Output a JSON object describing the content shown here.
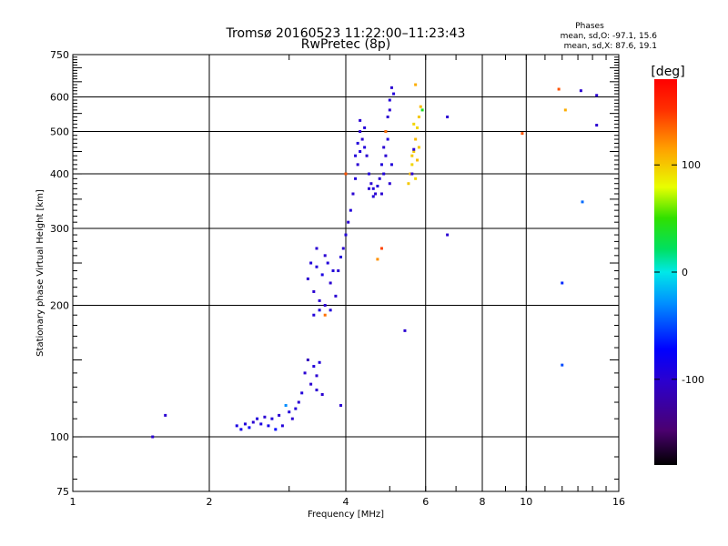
{
  "chart_data": {
    "type": "scatter",
    "title_line1": "Tromsø 20160523 11:22:00–11:23:43",
    "title_line2": "RwPretec (8p)",
    "stats": {
      "header": "Phases",
      "line_o": "mean, sd,O: -97.1, 15.6",
      "line_x": "mean, sd,X:  87.6, 19.1"
    },
    "xlabel": "Frequency [MHz]",
    "ylabel": "Stationary phase Virtual Height [km]",
    "x_scale": "log",
    "y_scale": "log",
    "xlim": [
      1,
      16
    ],
    "ylim": [
      75,
      750
    ],
    "x_ticks": [
      {
        "v": 1,
        "label": "1"
      },
      {
        "v": 2,
        "label": "2"
      },
      {
        "v": 4,
        "label": "4"
      },
      {
        "v": 6,
        "label": "6"
      },
      {
        "v": 8,
        "label": "8"
      },
      {
        "v": 10,
        "label": "10"
      },
      {
        "v": 16,
        "label": "16"
      }
    ],
    "x_grid": [
      2,
      4,
      6,
      8,
      10
    ],
    "y_ticks": [
      {
        "v": 75,
        "label": "75"
      },
      {
        "v": 100,
        "label": "100"
      },
      {
        "v": 200,
        "label": "200"
      },
      {
        "v": 300,
        "label": "300"
      },
      {
        "v": 400,
        "label": "400"
      },
      {
        "v": 500,
        "label": "500"
      },
      {
        "v": 600,
        "label": "600"
      },
      {
        "v": 750,
        "label": "750"
      }
    ],
    "y_grid": [
      100,
      200,
      300,
      400,
      500,
      600
    ],
    "colorbar": {
      "label": "[deg]",
      "min": -180,
      "max": 180,
      "ticks": [
        {
          "v": 100,
          "label": "100"
        },
        {
          "v": 0,
          "label": "0"
        },
        {
          "v": -100,
          "label": "-100"
        }
      ]
    },
    "points": [
      [
        1.5,
        100,
        -100
      ],
      [
        1.6,
        112,
        -100
      ],
      [
        2.3,
        106,
        -90
      ],
      [
        2.35,
        104,
        -85
      ],
      [
        2.4,
        107,
        -95
      ],
      [
        2.45,
        105,
        -80
      ],
      [
        2.5,
        108,
        -100
      ],
      [
        2.55,
        110,
        -95
      ],
      [
        2.6,
        107,
        -90
      ],
      [
        2.65,
        111,
        -100
      ],
      [
        2.7,
        106,
        -85
      ],
      [
        2.75,
        110,
        -95
      ],
      [
        2.8,
        104,
        -70
      ],
      [
        2.85,
        112,
        -100
      ],
      [
        2.9,
        106,
        -95
      ],
      [
        2.95,
        118,
        -30
      ],
      [
        3.0,
        114,
        -95
      ],
      [
        3.05,
        110,
        -100
      ],
      [
        3.1,
        116,
        -95
      ],
      [
        3.15,
        120,
        -100
      ],
      [
        3.2,
        126,
        -95
      ],
      [
        3.25,
        140,
        -100
      ],
      [
        3.3,
        150,
        -110
      ],
      [
        3.35,
        132,
        -100
      ],
      [
        3.4,
        145,
        -95
      ],
      [
        3.45,
        128,
        -100
      ],
      [
        3.5,
        148,
        -95
      ],
      [
        3.45,
        138,
        -100
      ],
      [
        3.55,
        125,
        -100
      ],
      [
        3.6,
        190,
        130
      ],
      [
        3.3,
        230,
        -100
      ],
      [
        3.35,
        250,
        -95
      ],
      [
        3.4,
        215,
        -100
      ],
      [
        3.45,
        245,
        -95
      ],
      [
        3.5,
        205,
        -100
      ],
      [
        3.55,
        235,
        -90
      ],
      [
        3.6,
        200,
        -100
      ],
      [
        3.65,
        250,
        -95
      ],
      [
        3.7,
        225,
        -100
      ],
      [
        3.75,
        240,
        -95
      ],
      [
        3.8,
        210,
        -100
      ],
      [
        3.4,
        190,
        -95
      ],
      [
        3.45,
        270,
        -100
      ],
      [
        3.5,
        195,
        -95
      ],
      [
        3.6,
        260,
        -100
      ],
      [
        3.7,
        195,
        -95
      ],
      [
        3.85,
        240,
        -100
      ],
      [
        3.9,
        258,
        -95
      ],
      [
        3.95,
        270,
        -100
      ],
      [
        4.0,
        290,
        -95
      ],
      [
        4.05,
        310,
        -100
      ],
      [
        4.1,
        330,
        -95
      ],
      [
        4.15,
        360,
        -100
      ],
      [
        4.2,
        390,
        -95
      ],
      [
        4.25,
        420,
        -100
      ],
      [
        4.3,
        450,
        -95
      ],
      [
        4.35,
        480,
        -100
      ],
      [
        4.4,
        510,
        -95
      ],
      [
        4.3,
        530,
        -100
      ],
      [
        4.25,
        470,
        -95
      ],
      [
        4.45,
        440,
        -100
      ],
      [
        4.5,
        400,
        -95
      ],
      [
        4.55,
        380,
        -100
      ],
      [
        4.6,
        370,
        -95
      ],
      [
        4.65,
        360,
        -100
      ],
      [
        4.7,
        375,
        -95
      ],
      [
        4.75,
        390,
        -100
      ],
      [
        4.8,
        420,
        -95
      ],
      [
        4.85,
        460,
        -100
      ],
      [
        4.9,
        500,
        -95
      ],
      [
        4.95,
        540,
        -100
      ],
      [
        5.0,
        590,
        -95
      ],
      [
        5.05,
        630,
        -100
      ],
      [
        5.1,
        610,
        -95
      ],
      [
        5.0,
        560,
        -100
      ],
      [
        4.95,
        480,
        -95
      ],
      [
        4.9,
        440,
        -100
      ],
      [
        4.85,
        400,
        -95
      ],
      [
        4.8,
        360,
        -100
      ],
      [
        4.2,
        440,
        -95
      ],
      [
        4.3,
        500,
        -100
      ],
      [
        4.4,
        460,
        -95
      ],
      [
        4.5,
        370,
        -100
      ],
      [
        4.6,
        355,
        -95
      ],
      [
        5.0,
        380,
        -100
      ],
      [
        5.05,
        420,
        -95
      ],
      [
        5.5,
        380,
        100
      ],
      [
        5.55,
        400,
        105
      ],
      [
        5.6,
        420,
        95
      ],
      [
        5.65,
        450,
        100
      ],
      [
        5.7,
        480,
        105
      ],
      [
        5.75,
        510,
        95
      ],
      [
        5.8,
        540,
        100
      ],
      [
        5.85,
        570,
        105
      ],
      [
        5.7,
        390,
        95
      ],
      [
        5.6,
        440,
        100
      ],
      [
        5.75,
        430,
        105
      ],
      [
        5.65,
        520,
        95
      ],
      [
        5.8,
        460,
        100
      ],
      [
        5.7,
        640,
        110
      ],
      [
        5.9,
        560,
        40
      ],
      [
        5.6,
        400,
        -100
      ],
      [
        5.65,
        455,
        -100
      ],
      [
        4.0,
        400,
        140
      ],
      [
        4.8,
        270,
        145
      ],
      [
        4.7,
        255,
        120
      ],
      [
        4.9,
        500,
        130
      ],
      [
        3.9,
        118,
        -100
      ],
      [
        5.4,
        175,
        -100
      ],
      [
        6.7,
        290,
        -100
      ],
      [
        6.7,
        540,
        -100
      ],
      [
        9.8,
        495,
        140
      ],
      [
        11.8,
        625,
        140
      ],
      [
        12.2,
        560,
        110
      ],
      [
        13.2,
        620,
        -100
      ],
      [
        14.3,
        605,
        -100
      ],
      [
        14.3,
        517,
        -100
      ],
      [
        13.3,
        345,
        -40
      ],
      [
        12.0,
        225,
        -60
      ],
      [
        12.0,
        146,
        -50
      ]
    ]
  }
}
